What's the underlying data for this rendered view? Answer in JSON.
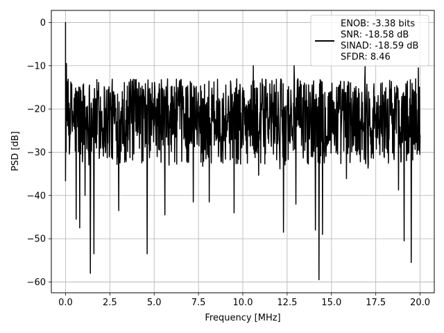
{
  "chart_data": {
    "type": "line",
    "title": "",
    "xlabel": "Frequency [MHz]",
    "ylabel": "PSD [dB]",
    "xlim": [
      -0.8,
      20.8
    ],
    "ylim": [
      -62.5,
      2.8
    ],
    "x_ticks": [
      0.0,
      2.5,
      5.0,
      7.5,
      10.0,
      12.5,
      15.0,
      17.5,
      20.0
    ],
    "x_tick_labels": [
      "0.0",
      "2.5",
      "5.0",
      "7.5",
      "10.0",
      "12.5",
      "15.0",
      "17.5",
      "20.0"
    ],
    "y_ticks": [
      0,
      -10,
      -20,
      -30,
      -40,
      -50,
      -60
    ],
    "y_tick_labels": [
      "0",
      "−10",
      "−20",
      "−30",
      "−40",
      "−50",
      "−60"
    ],
    "grid": true,
    "legend": {
      "placement": "top-right",
      "entries": [
        "ENOB: -3.38 bits",
        "SNR: -18.58 dB",
        "SINAD: -18.59 dB",
        "SFDR: 8.46"
      ]
    },
    "series": [
      {
        "color": "#000000",
        "x_range": [
          0.0,
          20.0
        ],
        "noise_floor_band": [
          -33,
          -13
        ],
        "peak": {
          "x": 0.0,
          "y": 0.0
        },
        "notable_dips": [
          {
            "x": 0.6,
            "y": -45.5
          },
          {
            "x": 0.8,
            "y": -47.5
          },
          {
            "x": 1.1,
            "y": -40
          },
          {
            "x": 1.4,
            "y": -58
          },
          {
            "x": 1.6,
            "y": -53.5
          },
          {
            "x": 3.0,
            "y": -43.5
          },
          {
            "x": 4.6,
            "y": -53.5
          },
          {
            "x": 5.6,
            "y": -44.5
          },
          {
            "x": 7.2,
            "y": -41.5
          },
          {
            "x": 8.1,
            "y": -41.5
          },
          {
            "x": 9.5,
            "y": -44
          },
          {
            "x": 12.3,
            "y": -48.5
          },
          {
            "x": 13.0,
            "y": -42
          },
          {
            "x": 14.1,
            "y": -48
          },
          {
            "x": 14.3,
            "y": -59.5
          },
          {
            "x": 14.5,
            "y": -49
          },
          {
            "x": 19.1,
            "y": -50.5
          },
          {
            "x": 19.5,
            "y": -55.5
          }
        ],
        "notable_peaks": [
          {
            "x": 0.05,
            "y": -9.5
          },
          {
            "x": 10.6,
            "y": -10
          },
          {
            "x": 12.9,
            "y": -10
          },
          {
            "x": 16.9,
            "y": -10
          },
          {
            "x": 19.9,
            "y": -10.5
          }
        ]
      }
    ]
  }
}
